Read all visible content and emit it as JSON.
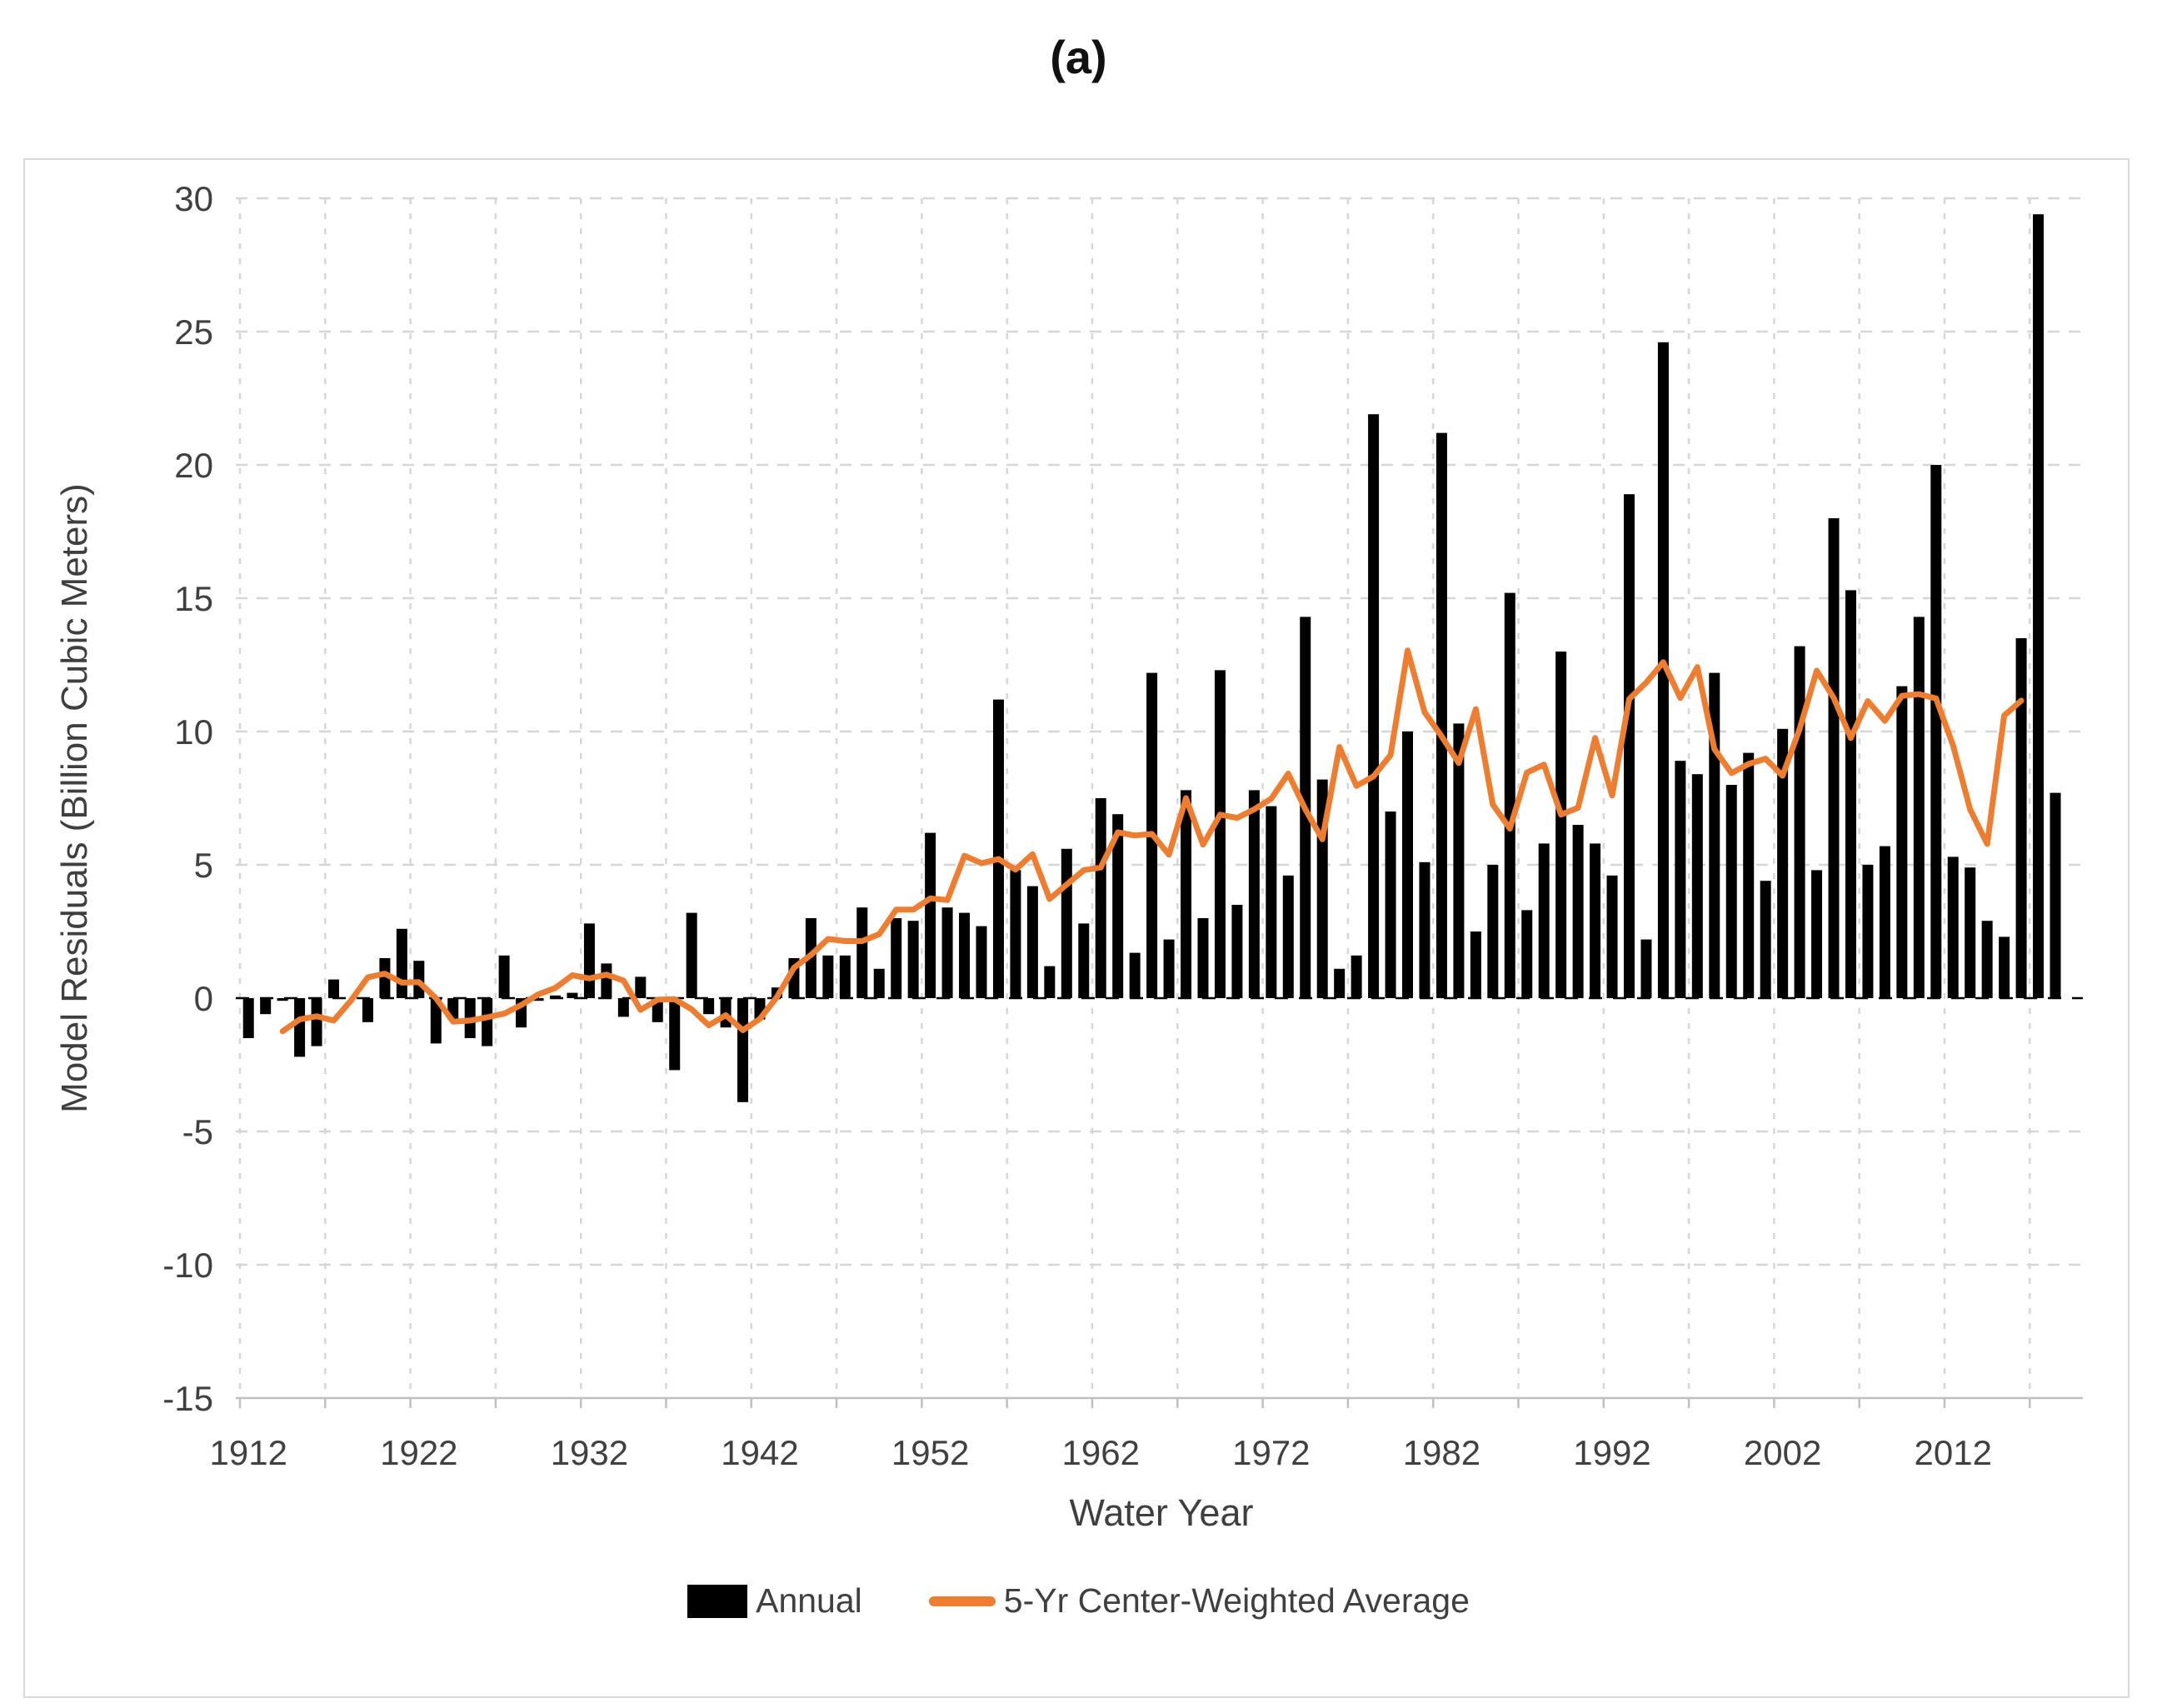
{
  "figure": {
    "title": "(a)"
  },
  "axes": {
    "y_title": "Model Residuals (Billion Cubic Meters)",
    "x_title": "Water Year",
    "y_tick_labels": [
      "30",
      "25",
      "20",
      "15",
      "10",
      "5",
      "0",
      "-5",
      "-10",
      "-15"
    ],
    "x_tick_labels": [
      "1912",
      "1922",
      "1932",
      "1942",
      "1952",
      "1962",
      "1972",
      "1982",
      "1992",
      "2002",
      "2012"
    ]
  },
  "legend": {
    "annual_label": "Annual",
    "average_label": "5-Yr Center-Weighted Average"
  },
  "colors": {
    "bar": "#000000",
    "line": "#ED7D31",
    "gridline": "#d6d6d6",
    "axis_line": "#bfbfbf",
    "zero_line": "#000000",
    "tick_text": "#404040",
    "frame_border": "#d9d9d9",
    "background": "#ffffff"
  },
  "chart_data": {
    "type": "bar",
    "title": "(a)",
    "xlabel": "Water Year",
    "ylabel": "Model Residuals (Billion Cubic Meters)",
    "ylim": [
      -15,
      30
    ],
    "y_tick_step": 5,
    "x_gridline_step_years": 5,
    "grid": true,
    "legend_position": "bottom",
    "x": [
      1912,
      1913,
      1914,
      1915,
      1916,
      1917,
      1918,
      1919,
      1920,
      1921,
      1922,
      1923,
      1924,
      1925,
      1926,
      1927,
      1928,
      1929,
      1930,
      1931,
      1932,
      1933,
      1934,
      1935,
      1936,
      1937,
      1938,
      1939,
      1940,
      1941,
      1942,
      1943,
      1944,
      1945,
      1946,
      1947,
      1948,
      1949,
      1950,
      1951,
      1952,
      1953,
      1954,
      1955,
      1956,
      1957,
      1958,
      1959,
      1960,
      1961,
      1962,
      1963,
      1964,
      1965,
      1966,
      1967,
      1968,
      1969,
      1970,
      1971,
      1972,
      1973,
      1974,
      1975,
      1976,
      1977,
      1978,
      1979,
      1980,
      1981,
      1982,
      1983,
      1984,
      1985,
      1986,
      1987,
      1988,
      1989,
      1990,
      1991,
      1992,
      1993,
      1994,
      1995,
      1996,
      1997,
      1998,
      1999,
      2000,
      2001,
      2002,
      2003,
      2004,
      2005,
      2006,
      2007,
      2008,
      2009,
      2010,
      2011,
      2012,
      2013,
      2014,
      2015,
      2016,
      2017,
      2018
    ],
    "series": [
      {
        "name": "Annual",
        "type": "bar",
        "color": "#000000",
        "values": [
          -1.5,
          -0.6,
          -0.1,
          -2.2,
          -1.8,
          0.7,
          0,
          -0.9,
          1.5,
          2.6,
          1.4,
          -1.7,
          -0.8,
          -1.5,
          -1.8,
          1.6,
          -1.1,
          -0.1,
          0.1,
          0.2,
          2.8,
          1.3,
          -0.7,
          0.8,
          -0.9,
          -2.7,
          3.2,
          -0.6,
          -1.1,
          -3.9,
          -0.8,
          0.4,
          1.5,
          3.0,
          1.6,
          1.6,
          3.4,
          1.1,
          3.0,
          2.9,
          6.2,
          3.4,
          3.2,
          2.7,
          11.2,
          4.8,
          4.2,
          1.2,
          5.6,
          2.8,
          7.5,
          6.9,
          1.7,
          12.2,
          2.2,
          7.8,
          3.0,
          12.3,
          3.5,
          7.8,
          7.2,
          4.6,
          14.3,
          8.2,
          1.1,
          1.6,
          21.9,
          7.0,
          10.0,
          5.1,
          21.2,
          10.3,
          2.5,
          5.0,
          15.2,
          3.3,
          5.8,
          13.0,
          6.5,
          5.8,
          4.6,
          18.9,
          2.2,
          24.6,
          8.9,
          8.4,
          12.2,
          8.0,
          9.2,
          4.4,
          10.1,
          13.2,
          4.8,
          18.0,
          15.3,
          5.0,
          5.7,
          11.7,
          14.3,
          20.0,
          5.3,
          4.9,
          2.9,
          2.3,
          13.5,
          29.4,
          7.7
        ]
      },
      {
        "name": "5-Yr Center-Weighted Average",
        "type": "line",
        "color": "#ED7D31",
        "derivation": "centered 5-year moving mean of the Annual series",
        "window": 5,
        "plotted_years": [
          1914,
          2016
        ]
      }
    ]
  }
}
